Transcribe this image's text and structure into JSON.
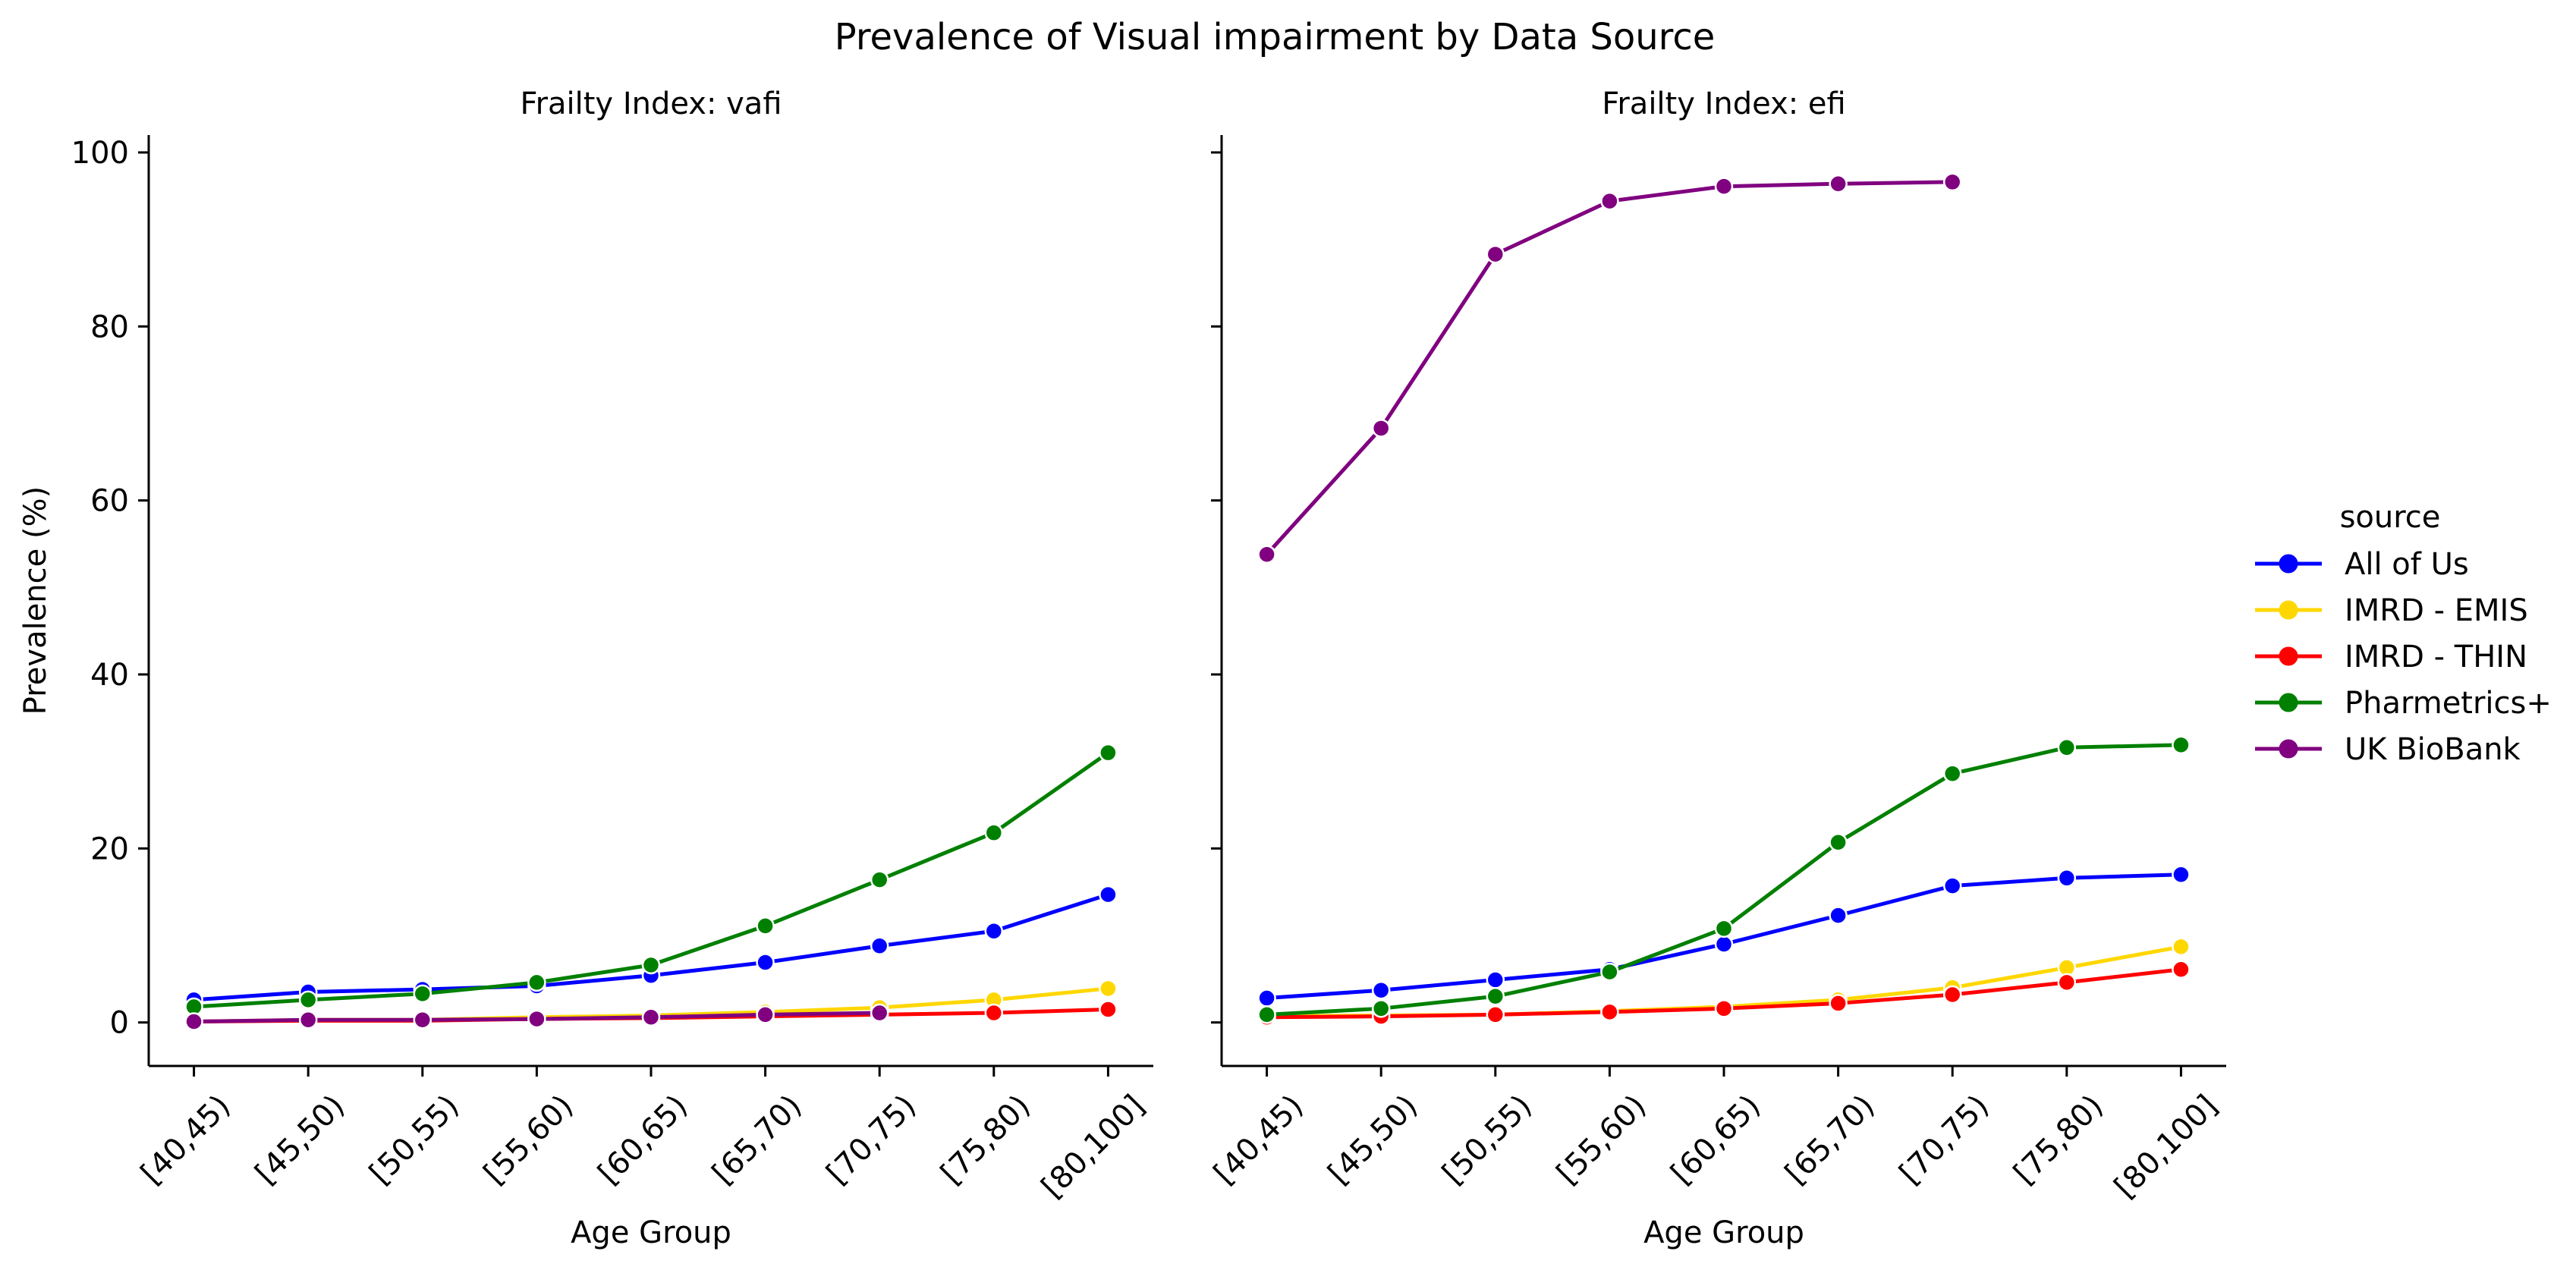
{
  "figure": {
    "title": "Prevalence of Visual impairment by Data Source"
  },
  "chart_data": [
    {
      "type": "line",
      "title": "Frailty Index: vafi",
      "xlabel": "Age Group",
      "ylabel": "Prevalence (%)",
      "ylim": [
        -5,
        102
      ],
      "yticks": [
        0,
        20,
        40,
        60,
        80,
        100
      ],
      "categories": [
        "[40,45)",
        "[45,50)",
        "[50,55)",
        "[55,60)",
        "[60,65)",
        "[65,70)",
        "[70,75)",
        "[75,80)",
        "[80,100]"
      ],
      "series": [
        {
          "name": "All of Us",
          "color": "#0000ff",
          "values": [
            2.6,
            3.5,
            3.8,
            4.2,
            5.4,
            6.9,
            8.8,
            10.5,
            14.7
          ]
        },
        {
          "name": "IMRD - EMIS",
          "color": "#ffd700",
          "values": [
            0.1,
            0.3,
            0.3,
            0.6,
            0.8,
            1.2,
            1.7,
            2.6,
            3.9
          ]
        },
        {
          "name": "IMRD - THIN",
          "color": "#ff0000",
          "values": [
            0.1,
            0.2,
            0.2,
            0.4,
            0.5,
            0.7,
            0.9,
            1.1,
            1.5
          ]
        },
        {
          "name": "Pharmetrics+",
          "color": "#008000",
          "values": [
            1.8,
            2.6,
            3.3,
            4.6,
            6.6,
            11.1,
            16.4,
            21.8,
            31.0
          ]
        },
        {
          "name": "UK BioBank",
          "color": "#800080",
          "values": [
            0.1,
            0.3,
            0.3,
            0.4,
            0.6,
            0.9,
            1.1,
            null,
            null
          ]
        }
      ],
      "grid": false
    },
    {
      "type": "line",
      "title": "Frailty Index: efi",
      "xlabel": "Age Group",
      "ylabel": "",
      "ylim": [
        -5,
        102
      ],
      "yticks": [
        0,
        20,
        40,
        60,
        80,
        100
      ],
      "categories": [
        "[40,45)",
        "[45,50)",
        "[50,55)",
        "[55,60)",
        "[60,65)",
        "[65,70)",
        "[70,75)",
        "[75,80)",
        "[80,100]"
      ],
      "series": [
        {
          "name": "All of Us",
          "color": "#0000ff",
          "values": [
            2.8,
            3.7,
            4.9,
            6.1,
            9.0,
            12.3,
            15.7,
            16.6,
            17.0
          ]
        },
        {
          "name": "IMRD - EMIS",
          "color": "#ffd700",
          "values": [
            0.7,
            0.8,
            0.9,
            1.3,
            1.8,
            2.6,
            4.0,
            6.3,
            8.7
          ]
        },
        {
          "name": "IMRD - THIN",
          "color": "#ff0000",
          "values": [
            0.6,
            0.7,
            0.9,
            1.2,
            1.6,
            2.2,
            3.2,
            4.6,
            6.1
          ]
        },
        {
          "name": "Pharmetrics+",
          "color": "#008000",
          "values": [
            0.9,
            1.6,
            3.0,
            5.8,
            10.8,
            20.7,
            28.6,
            31.6,
            31.9
          ]
        },
        {
          "name": "UK BioBank",
          "color": "#800080",
          "values": [
            53.8,
            68.3,
            88.3,
            94.4,
            96.1,
            96.4,
            96.6,
            null,
            null
          ]
        }
      ],
      "grid": false
    }
  ],
  "legend": {
    "title": "source",
    "placement": "right",
    "entries": [
      {
        "label": "All of Us",
        "color": "#0000ff"
      },
      {
        "label": "IMRD - EMIS",
        "color": "#ffd700"
      },
      {
        "label": "IMRD - THIN",
        "color": "#ff0000"
      },
      {
        "label": "Pharmetrics+",
        "color": "#008000"
      },
      {
        "label": "UK BioBank",
        "color": "#800080"
      }
    ]
  }
}
